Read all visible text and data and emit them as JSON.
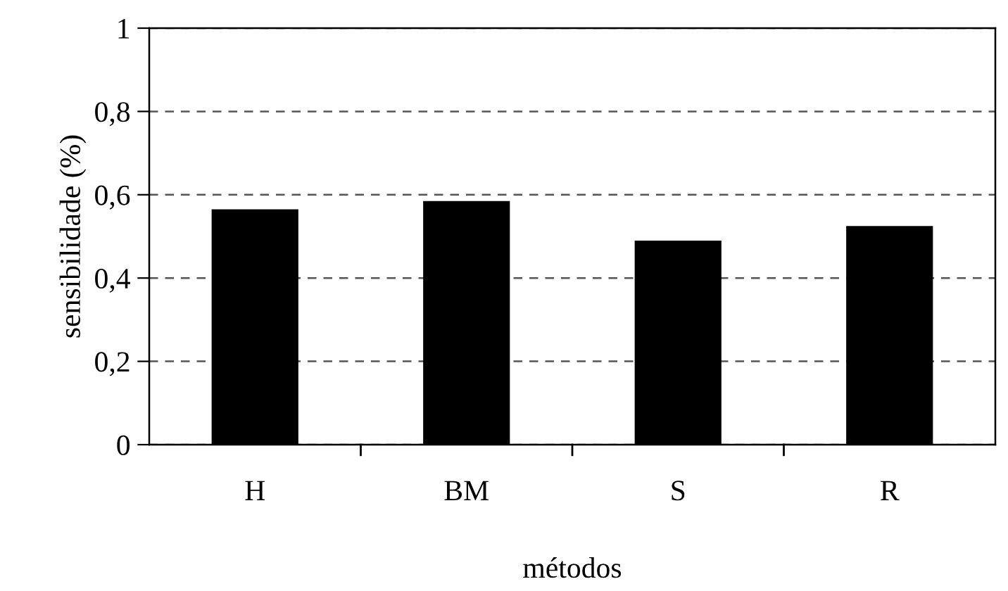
{
  "chart_data": {
    "type": "bar",
    "xlabel": "métodos",
    "ylabel": "sensibilidade (%)",
    "categories": [
      "H",
      "BM",
      "S",
      "R"
    ],
    "values": [
      0.565,
      0.585,
      0.49,
      0.525
    ],
    "color": "#000000",
    "ylim": [
      0,
      1
    ],
    "yticks": [
      {
        "value": 0,
        "label": "0"
      },
      {
        "value": 0.2,
        "label": "0,2"
      },
      {
        "value": 0.4,
        "label": "0,4"
      },
      {
        "value": 0.6,
        "label": "0,6"
      },
      {
        "value": 0.8,
        "label": "0,8"
      },
      {
        "value": 1,
        "label": "1"
      }
    ],
    "grid": "y",
    "line_style": "dashed",
    "legend": false
  }
}
